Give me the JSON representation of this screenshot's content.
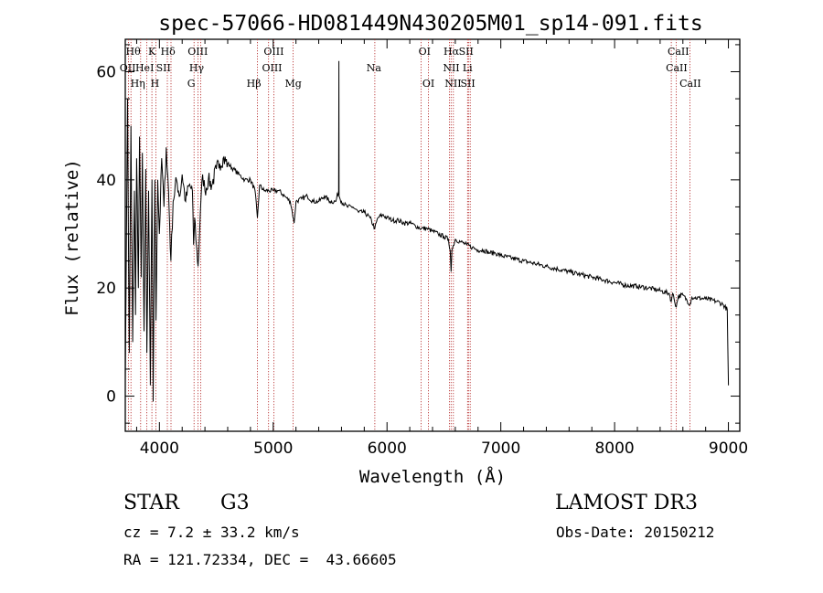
{
  "chart_data": {
    "type": "line",
    "title": "spec-57066-HD081449N430205M01_sp14-091.fits",
    "xlabel": "Wavelength (Å)",
    "ylabel": "Flux (relative)",
    "xlim": [
      3700,
      9100
    ],
    "ylim": [
      -6.5,
      66
    ],
    "xticks": [
      4000,
      5000,
      6000,
      7000,
      8000,
      9000
    ],
    "yticks": [
      0,
      20,
      40,
      60
    ],
    "grid": false,
    "series": [
      {
        "name": "spectrum",
        "anchors": [
          [
            3700,
            3
          ],
          [
            3720,
            55
          ],
          [
            3735,
            8
          ],
          [
            3750,
            50
          ],
          [
            3765,
            10
          ],
          [
            3780,
            38
          ],
          [
            3790,
            15
          ],
          [
            3800,
            44
          ],
          [
            3815,
            20
          ],
          [
            3825,
            48
          ],
          [
            3840,
            22
          ],
          [
            3850,
            45
          ],
          [
            3865,
            12
          ],
          [
            3880,
            42
          ],
          [
            3890,
            8
          ],
          [
            3905,
            38
          ],
          [
            3920,
            2
          ],
          [
            3935,
            40
          ],
          [
            3945,
            -1
          ],
          [
            3960,
            40
          ],
          [
            3970,
            14
          ],
          [
            3985,
            40
          ],
          [
            4000,
            30
          ],
          [
            4020,
            44
          ],
          [
            4040,
            35
          ],
          [
            4060,
            46
          ],
          [
            4080,
            38
          ],
          [
            4101,
            25
          ],
          [
            4120,
            36
          ],
          [
            4150,
            40
          ],
          [
            4180,
            37
          ],
          [
            4200,
            41
          ],
          [
            4230,
            36
          ],
          [
            4260,
            39
          ],
          [
            4290,
            38
          ],
          [
            4300,
            28
          ],
          [
            4310,
            33
          ],
          [
            4325,
            28
          ],
          [
            4340,
            24
          ],
          [
            4360,
            34
          ],
          [
            4380,
            41
          ],
          [
            4400,
            38
          ],
          [
            4430,
            40
          ],
          [
            4460,
            39
          ],
          [
            4500,
            42
          ],
          [
            4530,
            43
          ],
          [
            4560,
            44
          ],
          [
            4600,
            43
          ],
          [
            4650,
            42
          ],
          [
            4700,
            41
          ],
          [
            4750,
            40
          ],
          [
            4800,
            40
          ],
          [
            4840,
            38
          ],
          [
            4861,
            33
          ],
          [
            4880,
            39
          ],
          [
            4920,
            38
          ],
          [
            4960,
            38
          ],
          [
            5000,
            38
          ],
          [
            5050,
            38
          ],
          [
            5100,
            37
          ],
          [
            5150,
            36
          ],
          [
            5168,
            34
          ],
          [
            5183,
            32
          ],
          [
            5200,
            36
          ],
          [
            5250,
            36.5
          ],
          [
            5300,
            37
          ],
          [
            5350,
            36
          ],
          [
            5400,
            36
          ],
          [
            5450,
            37
          ],
          [
            5500,
            36
          ],
          [
            5550,
            36
          ],
          [
            5575,
            38
          ],
          [
            5577,
            62
          ],
          [
            5579,
            37
          ],
          [
            5600,
            36
          ],
          [
            5650,
            35
          ],
          [
            5700,
            35
          ],
          [
            5750,
            34
          ],
          [
            5800,
            34
          ],
          [
            5850,
            33
          ],
          [
            5893,
            31
          ],
          [
            5920,
            33
          ],
          [
            5960,
            33.5
          ],
          [
            6000,
            33
          ],
          [
            6050,
            32.5
          ],
          [
            6100,
            32.5
          ],
          [
            6150,
            32
          ],
          [
            6200,
            32
          ],
          [
            6250,
            31.5
          ],
          [
            6300,
            31
          ],
          [
            6350,
            31
          ],
          [
            6400,
            30.5
          ],
          [
            6450,
            30
          ],
          [
            6500,
            29.5
          ],
          [
            6540,
            29
          ],
          [
            6555,
            27
          ],
          [
            6563,
            23
          ],
          [
            6570,
            27
          ],
          [
            6600,
            29
          ],
          [
            6650,
            28.5
          ],
          [
            6700,
            28
          ],
          [
            6750,
            27.5
          ],
          [
            6800,
            27
          ],
          [
            6850,
            27
          ],
          [
            6900,
            26.5
          ],
          [
            6950,
            26.5
          ],
          [
            7000,
            26
          ],
          [
            7100,
            25.5
          ],
          [
            7200,
            25
          ],
          [
            7300,
            24.5
          ],
          [
            7400,
            24
          ],
          [
            7500,
            23.5
          ],
          [
            7600,
            23
          ],
          [
            7700,
            22.5
          ],
          [
            7800,
            22
          ],
          [
            7900,
            21.5
          ],
          [
            8000,
            21
          ],
          [
            8100,
            20.5
          ],
          [
            8200,
            20.3
          ],
          [
            8300,
            20
          ],
          [
            8400,
            19.5
          ],
          [
            8480,
            19
          ],
          [
            8498,
            17.5
          ],
          [
            8510,
            19
          ],
          [
            8542,
            16.5
          ],
          [
            8560,
            18.5
          ],
          [
            8600,
            18.7
          ],
          [
            8662,
            17
          ],
          [
            8680,
            18.3
          ],
          [
            8700,
            18.2
          ],
          [
            8800,
            18
          ],
          [
            8900,
            17.5
          ],
          [
            8950,
            17
          ],
          [
            8990,
            16
          ],
          [
            9000,
            2
          ]
        ]
      }
    ],
    "lines": [
      {
        "label": "OII",
        "wavelength": 3727,
        "row": 1,
        "lx": 3721
      },
      {
        "label": "Hθ",
        "wavelength": 3750,
        "row": 0,
        "lx": 3769
      },
      {
        "label": "Hη",
        "wavelength": 3835,
        "row": 2,
        "lx": 3810
      },
      {
        "label": "HeI",
        "wavelength": 3889,
        "row": 1,
        "lx": 3870
      },
      {
        "label": "K",
        "wavelength": 3934,
        "row": 0,
        "lx": 3934
      },
      {
        "label": "H",
        "wavelength": 3968,
        "row": 2,
        "lx": 3960
      },
      {
        "label": "SII",
        "wavelength": 4070,
        "row": 1,
        "lx": 4035
      },
      {
        "label": "Hδ",
        "wavelength": 4102,
        "row": 0,
        "lx": 4075
      },
      {
        "label": "OIII",
        "wavelength": 4363,
        "row": 0,
        "lx": 4337
      },
      {
        "label": "Hγ",
        "wavelength": 4340,
        "row": 1,
        "lx": 4327
      },
      {
        "label": "G",
        "wavelength": 4304,
        "row": 2,
        "lx": 4280
      },
      {
        "label": "Hβ",
        "wavelength": 4861,
        "row": 2,
        "lx": 4830
      },
      {
        "label": "OIII",
        "wavelength": 4959,
        "row": 0,
        "lx": 5005
      },
      {
        "label": "OIII",
        "wavelength": 5007,
        "row": 1,
        "lx": 4990
      },
      {
        "label": "Mg",
        "wavelength": 5175,
        "row": 2,
        "lx": 5175
      },
      {
        "label": "Na",
        "wavelength": 5893,
        "row": 1,
        "lx": 5885
      },
      {
        "label": "OI",
        "wavelength": 6300,
        "row": 0,
        "lx": 6330
      },
      {
        "label": "OI",
        "wavelength": 6364,
        "row": 2,
        "lx": 6365
      },
      {
        "label": "Hα",
        "wavelength": 6563,
        "row": 0,
        "lx": 6565
      },
      {
        "label": "NII",
        "wavelength": 6548,
        "row": 1,
        "lx": 6565
      },
      {
        "label": "NII",
        "wavelength": 6583,
        "row": 2,
        "lx": 6580
      },
      {
        "label": "SII",
        "wavelength": 6716,
        "row": 0,
        "lx": 6695
      },
      {
        "label": "Li",
        "wavelength": 6708,
        "row": 1,
        "lx": 6708
      },
      {
        "label": "SII",
        "wavelength": 6731,
        "row": 2,
        "lx": 6710
      },
      {
        "label": "CaII",
        "wavelength": 8498,
        "row": 0,
        "lx": 8560
      },
      {
        "label": "CaII",
        "wavelength": 8542,
        "row": 1,
        "lx": 8545
      },
      {
        "label": "CaII",
        "wavelength": 8662,
        "row": 2,
        "lx": 8665
      }
    ]
  },
  "info": {
    "object_class": "STAR",
    "subclass": "G3",
    "cz": "cz = 7.2 ± 33.2 km/s",
    "coords": "RA = 121.72334, DEC =  43.66605",
    "survey": "LAMOST DR3",
    "obs_date": "Obs-Date: 20150212"
  }
}
